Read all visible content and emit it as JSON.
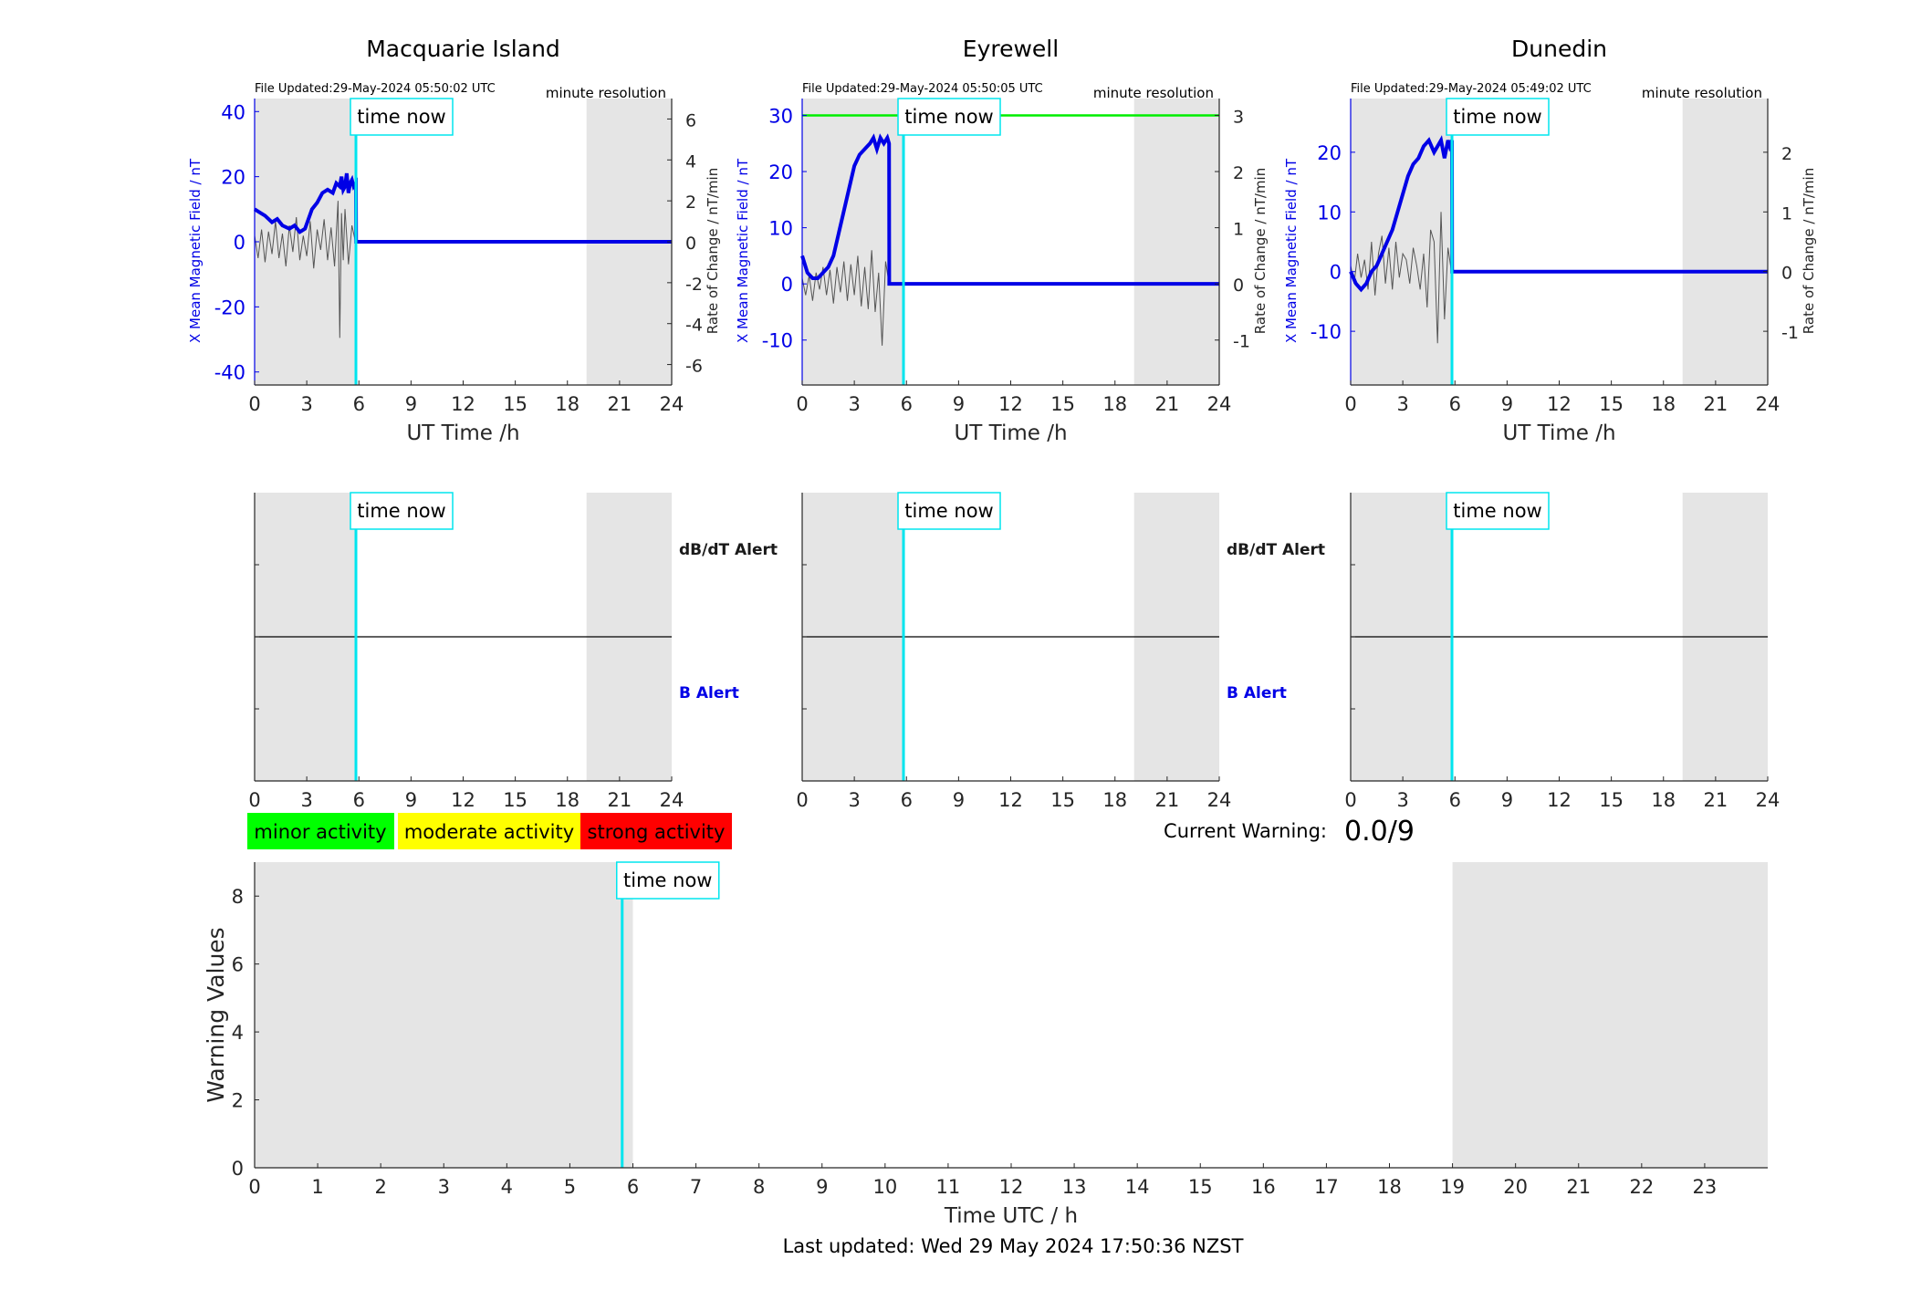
{
  "last_updated": "Last updated: Wed 29 May 2024 17:50:36 NZST",
  "current_warning": {
    "label": "Current Warning:",
    "value": "0.0/9"
  },
  "legend": [
    {
      "label": "minor activity",
      "color": "#00ff00"
    },
    {
      "label": "moderate activity",
      "color": "#ffff00"
    },
    {
      "label": "strong activity",
      "color": "#ff0000"
    }
  ],
  "alert_labels": {
    "dbdt": "dB/dT Alert",
    "b": "B Alert"
  },
  "time_now_label": "time now",
  "colors": {
    "field": "#0000e6",
    "rate": "#555555",
    "now": "#00e5ee",
    "night": "#e5e5e5",
    "threshold": "#00ee00"
  },
  "chart_data": [
    {
      "type": "line",
      "id": "macquarie",
      "title": "Macquarie Island",
      "file_updated": "File Updated:29-May-2024 05:50:02 UTC",
      "resolution": "minute resolution",
      "xlabel": "UT Time /h",
      "ylabel_left": "X Mean Magnetic Field / nT",
      "ylabel_right": "Rate of Change / nT/min",
      "xlim": [
        0,
        24
      ],
      "xticks": [
        0,
        3,
        6,
        9,
        12,
        15,
        18,
        21,
        24
      ],
      "ylim_left": [
        -44,
        44
      ],
      "yticks_left": [
        -40,
        -20,
        0,
        20,
        40
      ],
      "ylim_right": [
        -7,
        7
      ],
      "yticks_right": [
        -6,
        -4,
        -2,
        0,
        2,
        4,
        6
      ],
      "now": 5.83,
      "night": [
        [
          0,
          5.83
        ],
        [
          19.1,
          24
        ]
      ],
      "series": [
        {
          "axis": "left",
          "x": [
            0,
            0.3,
            0.6,
            1.0,
            1.3,
            1.6,
            2.0,
            2.3,
            2.6,
            2.9,
            3.1,
            3.3,
            3.6,
            3.9,
            4.2,
            4.5,
            4.7,
            4.9,
            5.0,
            5.1,
            5.2,
            5.3,
            5.4,
            5.5,
            5.6,
            5.7,
            5.83,
            5.84,
            24
          ],
          "values": [
            10,
            9,
            8,
            6,
            7,
            5,
            4,
            5,
            3,
            4,
            7,
            10,
            12,
            15,
            16,
            15,
            18,
            17,
            20,
            16,
            17,
            21,
            15,
            18,
            19,
            17,
            18,
            0,
            0
          ]
        },
        {
          "axis": "right",
          "x": [
            0,
            0.2,
            0.4,
            0.6,
            0.8,
            1.0,
            1.2,
            1.4,
            1.6,
            1.8,
            2.0,
            2.2,
            2.4,
            2.6,
            2.8,
            3.0,
            3.2,
            3.4,
            3.6,
            3.8,
            4.0,
            4.2,
            4.4,
            4.6,
            4.8,
            4.9,
            5.0,
            5.1,
            5.2,
            5.4,
            5.6,
            5.8,
            24
          ],
          "values": [
            0.3,
            -0.8,
            0.6,
            -1.0,
            0.5,
            -0.6,
            1.0,
            -0.8,
            0.4,
            -1.2,
            0.8,
            -0.5,
            1.2,
            -0.9,
            0.3,
            -0.7,
            1.0,
            -1.3,
            0.6,
            -0.4,
            1.1,
            -0.9,
            0.7,
            -1.2,
            2.0,
            -4.7,
            1.4,
            -0.9,
            1.6,
            -1.1,
            0.8,
            0,
            0
          ]
        }
      ]
    },
    {
      "type": "line",
      "id": "eyrewell",
      "title": "Eyrewell",
      "file_updated": "File Updated:29-May-2024 05:50:05 UTC",
      "resolution": "minute resolution",
      "xlabel": "UT Time /h",
      "ylabel_left": "X Mean Magnetic Field / nT",
      "ylabel_right": "Rate of Change / nT/min",
      "xlim": [
        0,
        24
      ],
      "xticks": [
        0,
        3,
        6,
        9,
        12,
        15,
        18,
        21,
        24
      ],
      "ylim_left": [
        -18,
        33
      ],
      "yticks_left": [
        -10,
        0,
        10,
        20,
        30
      ],
      "ylim_right": [
        -1.8,
        3.3
      ],
      "yticks_right": [
        -1,
        0,
        1,
        2,
        3
      ],
      "threshold_right": 3,
      "now": 5.83,
      "night": [
        [
          0,
          5.83
        ],
        [
          19.1,
          24
        ]
      ],
      "series": [
        {
          "axis": "left",
          "x": [
            0,
            0.3,
            0.6,
            0.9,
            1.2,
            1.5,
            1.8,
            2.1,
            2.4,
            2.7,
            3.0,
            3.3,
            3.6,
            3.9,
            4.1,
            4.3,
            4.5,
            4.7,
            4.9,
            5.0,
            5.01,
            5.83,
            24
          ],
          "values": [
            5,
            2,
            1,
            1,
            2,
            3,
            5,
            9,
            13,
            17,
            21,
            23,
            24,
            25,
            26,
            24,
            26,
            25,
            26,
            25,
            0,
            0,
            0
          ]
        },
        {
          "axis": "right",
          "x": [
            0,
            0.2,
            0.4,
            0.6,
            0.8,
            1.0,
            1.2,
            1.4,
            1.6,
            1.8,
            2.0,
            2.2,
            2.4,
            2.6,
            2.8,
            3.0,
            3.2,
            3.4,
            3.6,
            3.8,
            4.0,
            4.2,
            4.4,
            4.6,
            4.8,
            5.0,
            24
          ],
          "values": [
            0.1,
            -0.2,
            0.15,
            -0.3,
            0.2,
            -0.1,
            0.3,
            -0.2,
            0.25,
            -0.35,
            0.3,
            -0.15,
            0.4,
            -0.3,
            0.35,
            -0.2,
            0.5,
            -0.4,
            0.3,
            -0.45,
            0.6,
            -0.5,
            0.2,
            -1.1,
            0.4,
            0,
            0
          ]
        }
      ]
    },
    {
      "type": "line",
      "id": "dunedin",
      "title": "Dunedin",
      "file_updated": "File Updated:29-May-2024 05:49:02 UTC",
      "resolution": "minute resolution",
      "xlabel": "UT Time /h",
      "ylabel_left": "X Mean Magnetic Field / nT",
      "ylabel_right": "Rate of Change / nT/min",
      "xlim": [
        0,
        24
      ],
      "xticks": [
        0,
        3,
        6,
        9,
        12,
        15,
        18,
        21,
        24
      ],
      "ylim_left": [
        -19,
        29
      ],
      "yticks_left": [
        -10,
        0,
        10,
        20
      ],
      "ylim_right": [
        -1.9,
        2.9
      ],
      "yticks_right": [
        -1,
        0,
        1,
        2
      ],
      "now": 5.83,
      "night": [
        [
          0,
          5.83
        ],
        [
          19.1,
          24
        ]
      ],
      "series": [
        {
          "axis": "left",
          "x": [
            0,
            0.3,
            0.6,
            0.9,
            1.2,
            1.5,
            1.8,
            2.1,
            2.4,
            2.7,
            3.0,
            3.3,
            3.6,
            3.9,
            4.2,
            4.5,
            4.8,
            5.0,
            5.2,
            5.4,
            5.6,
            5.7,
            5.83,
            5.84,
            24
          ],
          "values": [
            0,
            -2,
            -3,
            -2,
            0,
            1,
            3,
            5,
            7,
            10,
            13,
            16,
            18,
            19,
            21,
            22,
            20,
            21,
            22,
            19,
            22,
            21,
            22,
            0,
            0
          ]
        },
        {
          "axis": "right",
          "x": [
            0,
            0.2,
            0.4,
            0.6,
            0.8,
            1.0,
            1.2,
            1.4,
            1.6,
            1.8,
            2.0,
            2.2,
            2.4,
            2.6,
            2.8,
            3.0,
            3.2,
            3.4,
            3.6,
            3.8,
            4.0,
            4.2,
            4.4,
            4.6,
            4.8,
            5.0,
            5.2,
            5.4,
            5.6,
            5.8,
            24
          ],
          "values": [
            0.1,
            -0.2,
            0.3,
            -0.1,
            0.2,
            -0.3,
            0.5,
            -0.4,
            0.3,
            0.6,
            -0.2,
            0.4,
            -0.3,
            0.5,
            -0.1,
            0.3,
            0.2,
            -0.2,
            0.4,
            0.1,
            -0.3,
            0.3,
            -0.6,
            0.7,
            0.5,
            -1.2,
            1.0,
            -0.8,
            0.4,
            0,
            0
          ]
        }
      ]
    },
    {
      "type": "alert",
      "id": "macquarie-alert",
      "xlim": [
        0,
        24
      ],
      "xticks": [
        0,
        3,
        6,
        9,
        12,
        15,
        18,
        21,
        24
      ],
      "now": 5.83,
      "night": [
        [
          0,
          5.83
        ],
        [
          19.1,
          24
        ]
      ]
    },
    {
      "type": "alert",
      "id": "eyrewell-alert",
      "xlim": [
        0,
        24
      ],
      "xticks": [
        0,
        3,
        6,
        9,
        12,
        15,
        18,
        21,
        24
      ],
      "now": 5.83,
      "night": [
        [
          0,
          5.83
        ],
        [
          19.1,
          24
        ]
      ]
    },
    {
      "type": "alert",
      "id": "dunedin-alert",
      "xlim": [
        0,
        24
      ],
      "xticks": [
        0,
        3,
        6,
        9,
        12,
        15,
        18,
        21,
        24
      ],
      "now": 5.83,
      "night": [
        [
          0,
          5.83
        ],
        [
          19.1,
          24
        ]
      ]
    },
    {
      "type": "bar",
      "id": "warning",
      "xlabel": "Time UTC / h",
      "ylabel": "Warning Values",
      "xlim": [
        0,
        24
      ],
      "xticks": [
        0,
        1,
        2,
        3,
        4,
        5,
        6,
        7,
        8,
        9,
        10,
        11,
        12,
        13,
        14,
        15,
        16,
        17,
        18,
        19,
        20,
        21,
        22,
        23
      ],
      "ylim": [
        0,
        9
      ],
      "yticks": [
        0,
        2,
        4,
        6,
        8
      ],
      "now": 5.83,
      "night": [
        [
          0,
          6
        ],
        [
          19,
          24
        ]
      ],
      "values": []
    }
  ]
}
